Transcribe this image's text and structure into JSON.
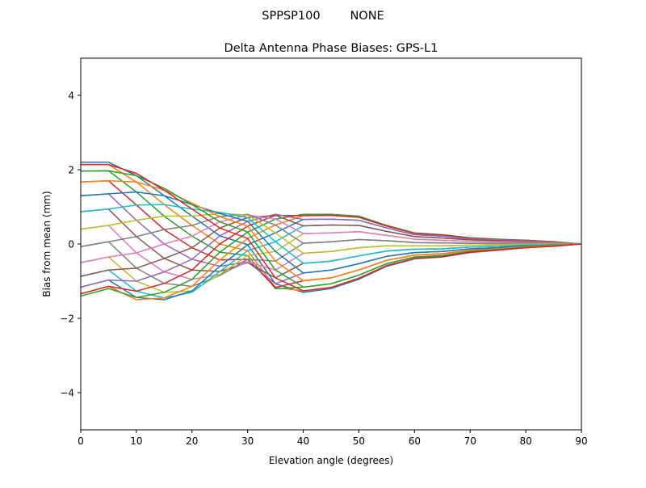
{
  "chart_data": {
    "type": "line",
    "suptitle": "SPPSP100        NONE",
    "title": "Delta Antenna Phase Biases: GPS-L1",
    "xlabel": "Elevation angle (degrees)",
    "ylabel": "Bias from mean (mm)",
    "xlim": [
      0,
      90
    ],
    "ylim": [
      -5,
      5
    ],
    "xticks": [
      0,
      10,
      20,
      30,
      40,
      50,
      60,
      70,
      80,
      90
    ],
    "yticks": [
      -4,
      -2,
      0,
      2,
      4
    ],
    "ytick_labels": [
      "−4",
      "−2",
      "0",
      "2",
      "4"
    ],
    "grid": false,
    "legend": "none",
    "colors": [
      "#1f77b4",
      "#ff7f0e",
      "#2ca02c",
      "#d62728",
      "#9467bd",
      "#8c564b",
      "#e377c2",
      "#7f7f7f",
      "#bcbd22",
      "#17becf"
    ],
    "x": [
      0,
      5,
      10,
      15,
      20,
      25,
      30,
      35,
      40,
      45,
      50,
      55,
      60,
      65,
      70,
      75,
      80,
      85,
      90
    ],
    "y_by_elevation": [
      [
        2.2,
        2.14,
        1.96,
        1.67,
        1.3,
        0.87,
        0.4,
        -0.07,
        -0.5,
        -0.87,
        -1.16,
        -1.34,
        -1.4,
        -1.34,
        -1.16,
        -0.87,
        -0.5,
        -0.07,
        0.4,
        0.87,
        1.3,
        1.67,
        1.96,
        2.14
      ],
      [
        2.2,
        2.14,
        1.97,
        1.7,
        1.35,
        0.94,
        0.5,
        0.06,
        -0.35,
        -0.7,
        -0.97,
        -1.14,
        -1.2,
        -1.14,
        -0.97,
        -0.7,
        -0.35,
        0.06,
        0.5,
        0.94,
        1.35,
        1.7,
        1.97,
        2.14
      ],
      [
        1.84,
        1.67,
        1.4,
        1.05,
        0.64,
        0.2,
        -0.24,
        -0.65,
        -1.0,
        -1.27,
        -1.44,
        -1.5,
        -1.44,
        -1.27,
        -1.0,
        -0.65,
        -0.24,
        0.2,
        0.64,
        1.05,
        1.4,
        1.67,
        1.84,
        1.9
      ],
      [
        1.3,
        1.06,
        0.75,
        0.39,
        0,
        -0.39,
        -0.75,
        -1.06,
        -1.3,
        -1.45,
        -1.5,
        -1.45,
        -1.3,
        -1.06,
        -0.75,
        -0.39,
        0,
        0.39,
        0.75,
        1.06,
        1.3,
        1.45,
        1.5,
        1.45
      ],
      [
        0.75,
        0.5,
        0.21,
        -0.1,
        -0.41,
        -0.7,
        -0.95,
        -1.14,
        -1.26,
        -1.3,
        -1.26,
        -1.14,
        -0.95,
        -0.7,
        -0.41,
        -0.1,
        0.21,
        0.5,
        0.75,
        0.94,
        1.06,
        1.1,
        1.06,
        0.94
      ],
      [
        0.22,
        0,
        -0.22,
        -0.43,
        -0.6,
        -0.74,
        -0.82,
        -0.85,
        -0.82,
        -0.74,
        -0.6,
        -0.43,
        -0.22,
        0,
        0.22,
        0.43,
        0.6,
        0.74,
        0.82,
        0.85,
        0.82,
        0.74,
        0.6,
        0.43
      ],
      [
        -0.02,
        -0.18,
        -0.31,
        -0.41,
        -0.48,
        -0.5,
        -0.48,
        -0.41,
        -0.31,
        -0.18,
        -0.02,
        0.15,
        0.32,
        0.48,
        0.61,
        0.71,
        0.78,
        0.8,
        0.78,
        0.71,
        0.61,
        0.48,
        0.32,
        0.15
      ],
      [
        -1.07,
        -1.17,
        -1.2,
        -1.17,
        -1.07,
        -0.91,
        -0.7,
        -0.46,
        -0.2,
        0.06,
        0.3,
        0.51,
        0.67,
        0.77,
        0.8,
        0.77,
        0.67,
        0.51,
        0.3,
        0.06,
        -0.2,
        -0.46,
        -0.7,
        -0.91
      ],
      [
        -1.3,
        -1.26,
        -1.16,
        -0.99,
        -0.78,
        -0.52,
        -0.25,
        0.02,
        0.28,
        0.49,
        0.66,
        0.76,
        0.8,
        0.76,
        0.66,
        0.49,
        0.28,
        0.02,
        -0.25,
        -0.52,
        -0.78,
        -0.99,
        -1.16,
        -1.26
      ],
      [
        -1.2,
        -1.17,
        -1.07,
        -0.91,
        -0.7,
        -0.46,
        -0.2,
        0.06,
        0.3,
        0.51,
        0.67,
        0.77,
        0.8,
        0.77,
        0.67,
        0.51,
        0.3,
        0.06,
        -0.2,
        -0.46,
        -0.7,
        -0.91,
        -1.07,
        -1.17
      ],
      [
        -0.95,
        -0.92,
        -0.84,
        -0.7,
        -0.53,
        -0.32,
        -0.1,
        0.12,
        0.33,
        0.5,
        0.64,
        0.72,
        0.75,
        0.72,
        0.64,
        0.5,
        0.33,
        0.12,
        -0.1,
        -0.32,
        -0.53,
        -0.7,
        -0.84,
        -0.92
      ],
      [
        -0.6,
        -0.58,
        -0.53,
        -0.44,
        -0.33,
        -0.19,
        -0.05,
        0.09,
        0.23,
        0.34,
        0.43,
        0.48,
        0.5,
        0.48,
        0.43,
        0.34,
        0.23,
        0.09,
        -0.05,
        -0.19,
        -0.33,
        -0.44,
        -0.53,
        -0.58
      ],
      [
        -0.4,
        -0.39,
        -0.35,
        -0.3,
        -0.23,
        -0.14,
        -0.05,
        0.04,
        0.13,
        0.2,
        0.25,
        0.29,
        0.3,
        0.29,
        0.25,
        0.2,
        0.13,
        0.04,
        -0.05,
        -0.14,
        -0.23,
        -0.3,
        -0.35,
        -0.39
      ],
      [
        -0.35,
        -0.34,
        -0.31,
        -0.26,
        -0.2,
        -0.13,
        -0.05,
        0.03,
        0.1,
        0.16,
        0.21,
        0.24,
        0.25,
        0.24,
        0.21,
        0.16,
        0.1,
        0.03,
        -0.05,
        -0.13,
        -0.2,
        -0.26,
        -0.31,
        -0.34
      ],
      [
        -0.23,
        -0.22,
        -0.2,
        -0.17,
        -0.13,
        -0.08,
        -0.03,
        0.02,
        0.07,
        0.11,
        0.14,
        0.16,
        0.17,
        0.16,
        0.14,
        0.11,
        0.07,
        0.02,
        -0.03,
        -0.08,
        -0.13,
        -0.17,
        -0.2,
        -0.22
      ],
      [
        -0.17,
        -0.16,
        -0.15,
        -0.13,
        -0.1,
        -0.06,
        -0.02,
        0.02,
        0.06,
        0.09,
        0.11,
        0.12,
        0.13,
        0.12,
        0.11,
        0.09,
        0.06,
        0.02,
        -0.02,
        -0.06,
        -0.1,
        -0.13,
        -0.15,
        -0.16
      ],
      [
        -0.1,
        -0.1,
        -0.09,
        -0.07,
        -0.05,
        -0.03,
        0,
        0.03,
        0.05,
        0.07,
        0.09,
        0.1,
        0.1,
        0.1,
        0.09,
        0.07,
        0.05,
        0.03,
        0,
        -0.03,
        -0.05,
        -0.07,
        -0.09,
        -0.1
      ],
      [
        -0.06,
        -0.06,
        -0.05,
        -0.04,
        -0.03,
        -0.02,
        0,
        0.02,
        0.03,
        0.04,
        0.05,
        0.06,
        0.06,
        0.06,
        0.05,
        0.04,
        0.03,
        0.02,
        0,
        -0.02,
        -0.03,
        -0.04,
        -0.05,
        -0.06
      ],
      [
        0,
        0,
        0,
        0,
        0,
        0,
        0,
        0,
        0,
        0,
        0,
        0,
        0,
        0,
        0,
        0,
        0,
        0,
        0,
        0,
        0,
        0,
        0,
        0
      ]
    ]
  }
}
